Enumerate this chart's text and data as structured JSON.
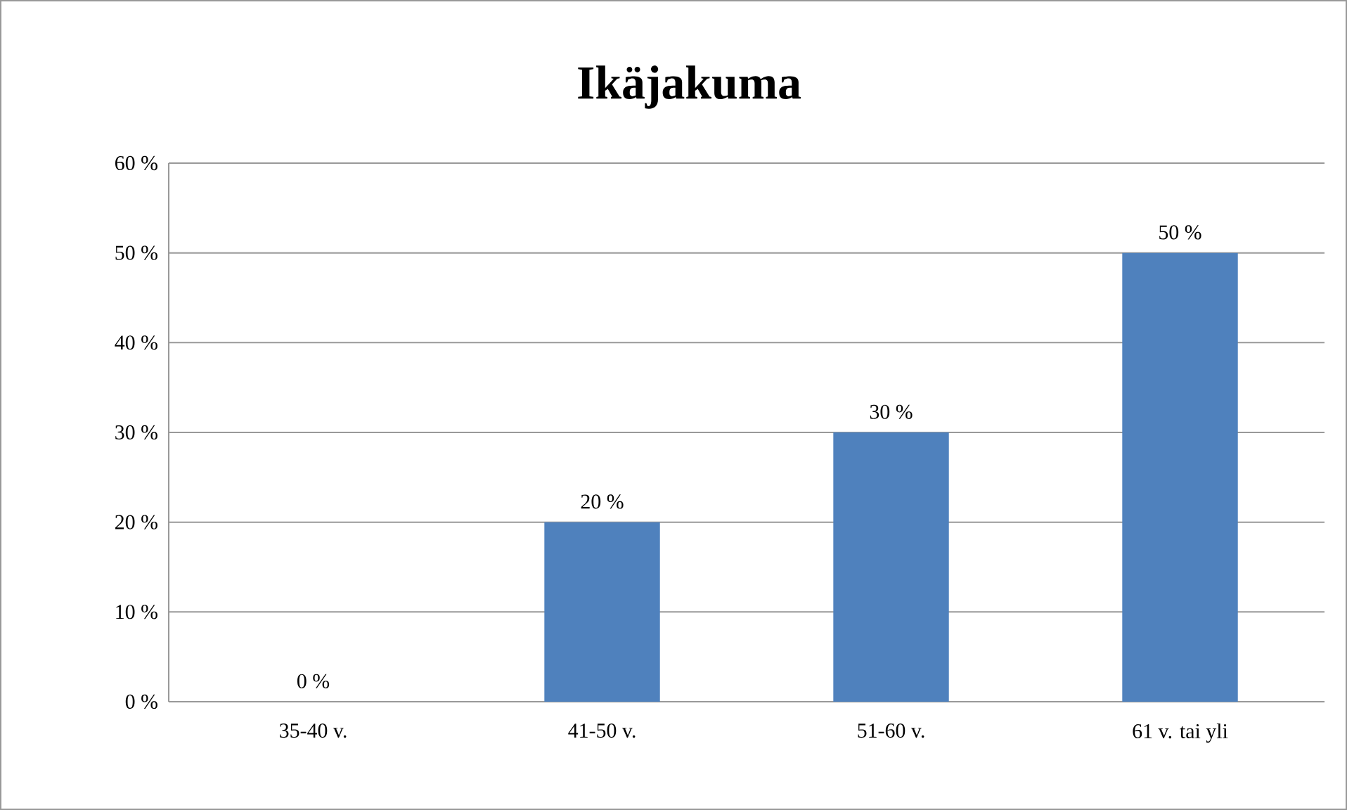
{
  "chart_data": {
    "type": "bar",
    "title": "Ikäjakuma",
    "categories": [
      "35-40 v.",
      "41-50 v.",
      "51-60 v.",
      "61 v. tai yli"
    ],
    "values": [
      0,
      20,
      30,
      50
    ],
    "value_labels": [
      "0 %",
      "20 %",
      "30 %",
      "50 %"
    ],
    "color": "#4f81bd",
    "ylim": [
      0,
      60
    ],
    "yticks": [
      {
        "value": 0,
        "label": "0 %"
      },
      {
        "value": 10,
        "label": "10 %"
      },
      {
        "value": 20,
        "label": "20 %"
      },
      {
        "value": 30,
        "label": "30 %"
      },
      {
        "value": 40,
        "label": "40 %"
      },
      {
        "value": 50,
        "label": "50 %"
      },
      {
        "value": 60,
        "label": "60 %"
      }
    ],
    "grid": "y"
  }
}
